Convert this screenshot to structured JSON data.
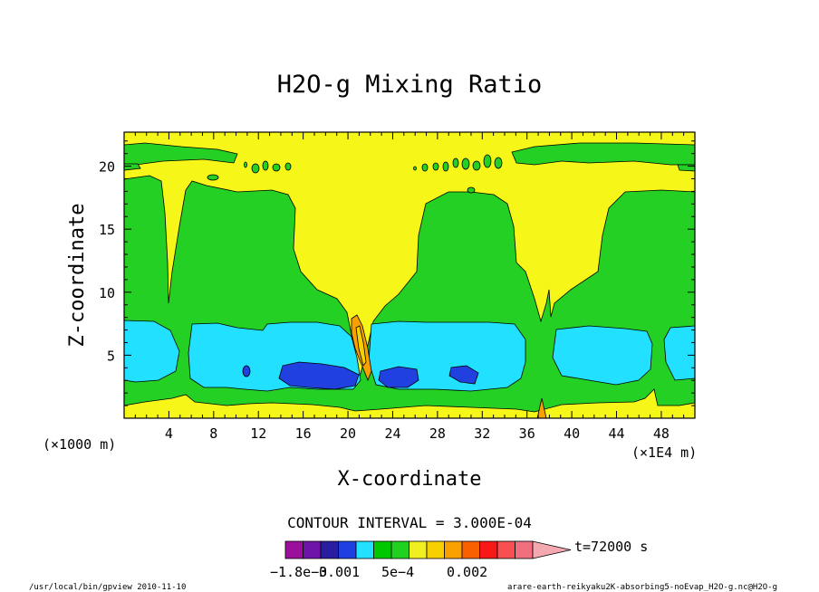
{
  "chart_data": {
    "type": "heatmap",
    "title": "H2O-g Mixing Ratio",
    "xlabel": "X-coordinate",
    "ylabel": "Z-coordinate",
    "x_scale_note": "(×1E4 m)",
    "y_scale_note": "(×1000 m)",
    "x_ticks": [
      4,
      8,
      12,
      16,
      20,
      24,
      28,
      32,
      36,
      40,
      44,
      48
    ],
    "y_ticks": [
      5,
      10,
      15,
      20
    ],
    "xlim": [
      0,
      51
    ],
    "ylim": [
      0,
      22.7
    ],
    "grid": false,
    "contour_interval": "CONTOUR INTERVAL = 3.000E-04",
    "time_label": "t=72000 s",
    "colorbar_labels": [
      "−1.8e−3",
      "0.001",
      "5e−4",
      "0.002"
    ],
    "colorbar_colors": [
      "#9c0f9c",
      "#6e14a8",
      "#2a1ea0",
      "#1e40e0",
      "#22e0ff",
      "#00c800",
      "#22d020",
      "#f0f020",
      "#f8d000",
      "#f8a000",
      "#f86000",
      "#f81818",
      "#f85050",
      "#f07080",
      "#f4a8b0"
    ],
    "field_colors": {
      "yellow": "#f6f618",
      "green": "#24d024",
      "cyan": "#22e0ff",
      "blue": "#2040e0",
      "orange": "#f8a000",
      "gold": "#f8d000"
    },
    "regions": [
      {
        "name": "lower-green-band",
        "color": "green",
        "z_range": [
          0.8,
          8.5
        ]
      },
      {
        "name": "cyan-layer-left",
        "color": "cyan",
        "x_range": [
          0,
          6
        ],
        "z_range": [
          2,
          7.5
        ]
      },
      {
        "name": "cyan-layer-mid",
        "color": "cyan",
        "x_range": [
          6,
          21
        ],
        "z_range": [
          2,
          7.5
        ]
      },
      {
        "name": "cyan-layer-right",
        "color": "cyan",
        "x_range": [
          22,
          35
        ],
        "z_range": [
          2,
          7.5
        ]
      },
      {
        "name": "cyan-layer-far-right",
        "color": "cyan",
        "x_range": [
          38,
          51
        ],
        "z_range": [
          2,
          7.5
        ]
      },
      {
        "name": "blue-core-mid",
        "color": "blue",
        "x_range": [
          13.5,
          20.5
        ],
        "z_range": [
          2.5,
          4.5
        ]
      },
      {
        "name": "blue-core-right",
        "color": "blue",
        "x_range": [
          23,
          31.5
        ],
        "z_range": [
          2.5,
          4.5
        ]
      },
      {
        "name": "orange-plume",
        "color": "orange",
        "x_range": [
          20.5,
          21.8
        ],
        "z_range": [
          2.5,
          8
        ]
      }
    ]
  },
  "footer": {
    "left": "/usr/local/bin/gpview  2010-11-10",
    "right": "arare-earth-reikyaku2K-absorbing5-noEvap_H2O-g.nc@H2O-g"
  }
}
